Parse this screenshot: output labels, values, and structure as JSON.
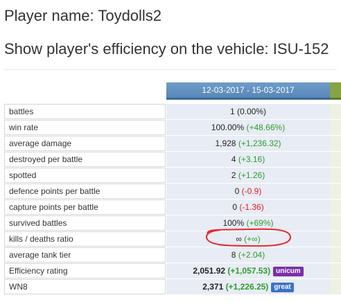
{
  "header": {
    "player_label": "Player name: Toydolls2",
    "vehicle_label": "Show player's efficiency on the vehicle: ISU-152"
  },
  "period": "12-03-2017 - 15-03-2017",
  "stats": [
    {
      "label": "battles",
      "value": "1",
      "delta": "(0.00%)",
      "trend": "neutral"
    },
    {
      "label": "win rate",
      "value": "100.00%",
      "delta": "(+48.66%)",
      "trend": "up"
    },
    {
      "label": "average damage",
      "value": "1,928",
      "delta": "(+1,236.32)",
      "trend": "up"
    },
    {
      "label": "destroyed per battle",
      "value": "4",
      "delta": "(+3.16)",
      "trend": "up"
    },
    {
      "label": "spotted",
      "value": "2",
      "delta": "(+1.26)",
      "trend": "up"
    },
    {
      "label": "defence points per battle",
      "value": "0",
      "delta": "(-0.9)",
      "trend": "down"
    },
    {
      "label": "capture points per battle",
      "value": "0",
      "delta": "(-1.36)",
      "trend": "down"
    },
    {
      "label": "survived battles",
      "value": "100%",
      "delta": "(+69%)",
      "trend": "up"
    },
    {
      "label": "kills / deaths ratio",
      "value": "∞",
      "delta": "(+∞)",
      "trend": "up"
    },
    {
      "label": "average tank tier",
      "value": "8",
      "delta": "(+2.04)",
      "trend": "up"
    },
    {
      "label": "Efficiency rating",
      "value": "2,051.92",
      "delta": "(+1,057.53)",
      "trend": "up",
      "bold": true,
      "badge": "unicum",
      "badge_color": "#7b2fa8"
    },
    {
      "label": "WN8",
      "value": "2,371",
      "delta": "(+1,226.25)",
      "trend": "up",
      "bold": true,
      "badge": "great",
      "badge_color": "#3b73c5"
    }
  ],
  "colors": {
    "positive": "#2c9c2c",
    "negative": "#e0201e",
    "annotation": "#e8262a"
  }
}
